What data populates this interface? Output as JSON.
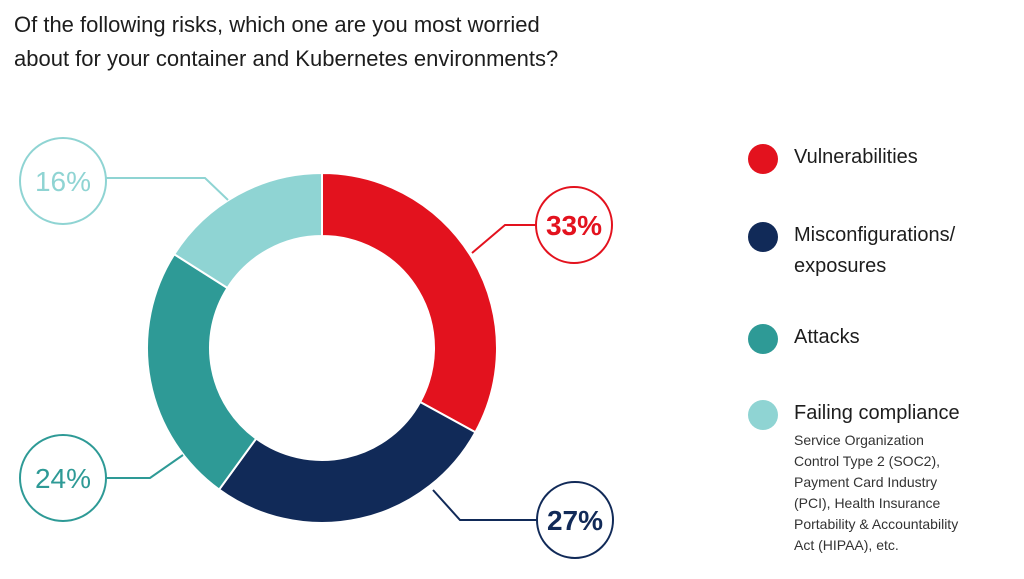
{
  "title_lines": [
    "Of the following risks, which one are you most worried",
    "about for your container and Kubernetes environments?"
  ],
  "chart_data": {
    "type": "pie",
    "title": "Of the following risks, which one are you most worried about for your container and Kubernetes environments?",
    "unit": "%",
    "donut": true,
    "slices": [
      {
        "label": "Vulnerabilities",
        "value": 33,
        "display": "33%",
        "color": "#e3121e"
      },
      {
        "label": "Misconfigurations/ exposures",
        "value": 27,
        "display": "27%",
        "color": "#112a58"
      },
      {
        "label": "Attacks",
        "value": 24,
        "display": "24%",
        "color": "#2e9a96"
      },
      {
        "label": "Failing compliance",
        "value": 16,
        "display": "16%",
        "color": "#8fd4d3"
      }
    ]
  },
  "legend": {
    "items": [
      {
        "label_lines": [
          "Vulnerabilities"
        ],
        "color": "#e3121e"
      },
      {
        "label_lines": [
          "Misconfigurations/",
          "exposures"
        ],
        "color": "#112a58"
      },
      {
        "label_lines": [
          "Attacks"
        ],
        "color": "#2e9a96"
      },
      {
        "label_lines": [
          "Failing compliance"
        ],
        "color": "#8fd4d3",
        "sub_lines": [
          "Service Organization",
          "Control Type 2 (SOC2),",
          "Payment Card Industry",
          "(PCI), Health Insurance",
          "Portability & Accountability",
          "Act (HIPAA), etc."
        ]
      }
    ]
  }
}
